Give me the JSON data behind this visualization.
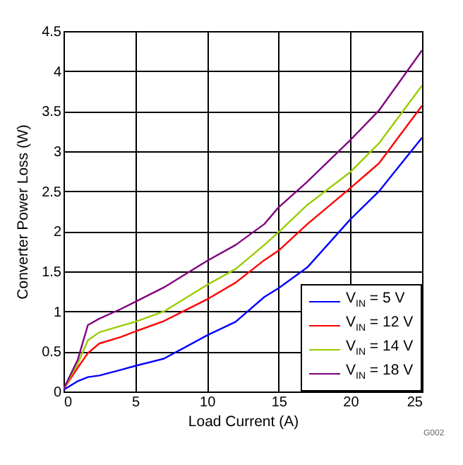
{
  "chart_data": {
    "type": "line",
    "xlabel": "Load Current (A)",
    "ylabel": "Converter Power Loss (W)",
    "xlim": [
      0,
      25
    ],
    "ylim": [
      0,
      4.5
    ],
    "xticks": [
      0,
      5,
      10,
      15,
      20,
      25
    ],
    "yticks": [
      0,
      0.5,
      1,
      1.5,
      2,
      2.5,
      3,
      3.5,
      4,
      4.5
    ],
    "grid": true,
    "legend": "bottom right",
    "annotations": [
      "G002"
    ],
    "x": [
      0,
      1,
      1.7,
      2.5,
      4,
      5,
      7,
      10,
      12,
      14,
      15,
      17,
      20,
      22,
      25
    ],
    "series": [
      {
        "name": "V$_{IN}$ = 5 V",
        "color": "#0000ff",
        "values": [
          0.02,
          0.13,
          0.18,
          0.2,
          0.27,
          0.32,
          0.41,
          0.7,
          0.87,
          1.18,
          1.29,
          1.55,
          2.15,
          2.5,
          3.17
        ]
      },
      {
        "name": "V$_{IN}$ = 12 V",
        "color": "#ff0000",
        "values": [
          0.03,
          0.3,
          0.48,
          0.6,
          0.68,
          0.75,
          0.88,
          1.15,
          1.36,
          1.64,
          1.76,
          2.09,
          2.54,
          2.85,
          3.57
        ]
      },
      {
        "name": "V$_{IN}$ = 14 V",
        "color": "#99cc00",
        "values": [
          0.03,
          0.35,
          0.64,
          0.74,
          0.82,
          0.87,
          1.0,
          1.33,
          1.53,
          1.83,
          1.99,
          2.33,
          2.74,
          3.1,
          3.82
        ]
      },
      {
        "name": "V$_{IN}$ = 18 V",
        "color": "#800080",
        "values": [
          0.03,
          0.4,
          0.83,
          0.91,
          1.03,
          1.12,
          1.3,
          1.63,
          1.83,
          2.09,
          2.3,
          2.62,
          3.14,
          3.51,
          4.26
        ]
      }
    ]
  }
}
